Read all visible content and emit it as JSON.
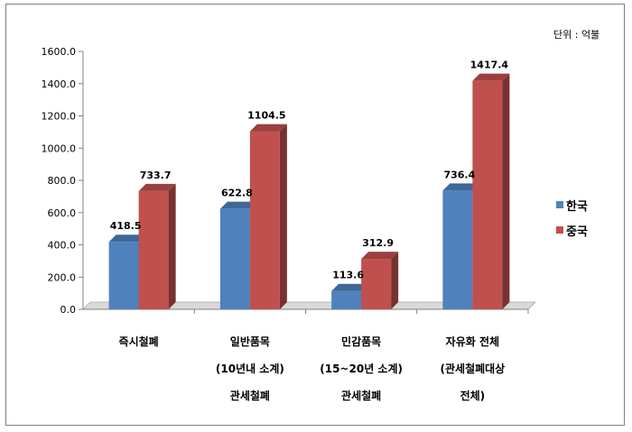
{
  "chart_data": {
    "type": "bar",
    "unit_note": "단위 : 억불",
    "categories": [
      [
        "즉시철폐"
      ],
      [
        "일반품목",
        "(10년내 소계)",
        "관세철폐"
      ],
      [
        "민감품목",
        "(15~20년 소계)",
        "관세철폐"
      ],
      [
        "자유화 전체",
        "(관세철폐대상",
        "전체)"
      ]
    ],
    "series": [
      {
        "name": "한국",
        "color": "#4f81bd",
        "values": [
          418.5,
          622.8,
          113.6,
          736.4
        ],
        "labels": [
          "418.5",
          "622.8",
          "113.6",
          "736.4"
        ]
      },
      {
        "name": "중국",
        "color": "#c0504d",
        "values": [
          733.7,
          1104.5,
          312.9,
          1417.4
        ],
        "labels": [
          "733.7",
          "1104.5",
          "312.9",
          "1417.4"
        ]
      }
    ],
    "ylim": [
      0,
      1600
    ],
    "yticks": [
      "0.0",
      "200.0",
      "400.0",
      "600.0",
      "800.0",
      "1000.0",
      "1200.0",
      "1400.0",
      "1600.0"
    ],
    "legend_position": "right",
    "grid": false,
    "style": "3d-column"
  }
}
